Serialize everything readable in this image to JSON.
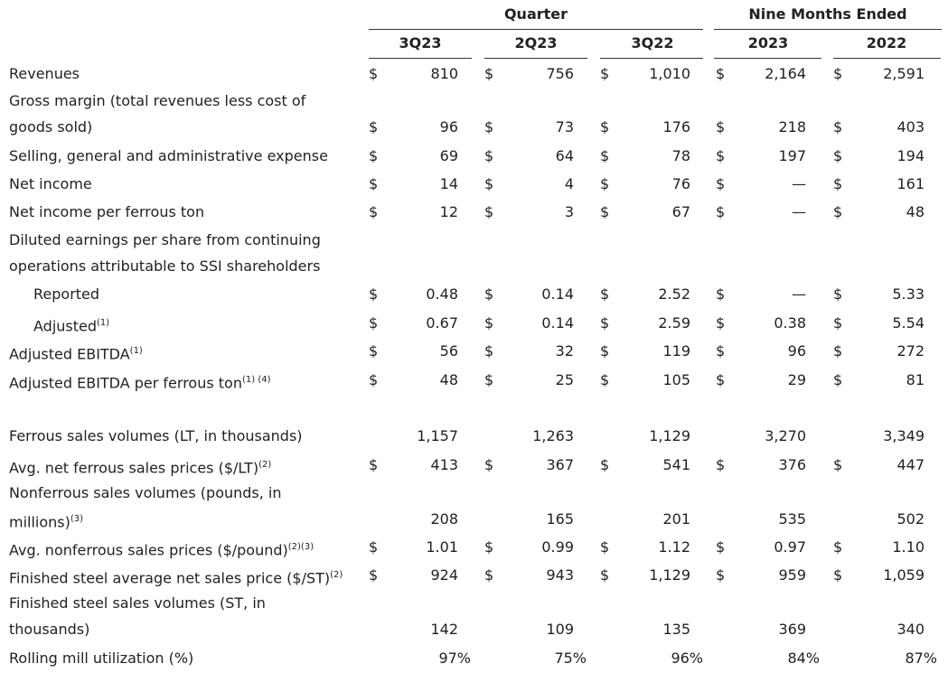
{
  "headers": {
    "quarter": "Quarter",
    "nine_months": "Nine Months Ended",
    "columns": [
      "3Q23",
      "2Q23",
      "3Q22",
      "2023",
      "2022"
    ]
  },
  "currency_symbol": "$",
  "rows": [
    {
      "lines": [
        "Revenues"
      ],
      "dollar": true,
      "values": [
        "810",
        "756",
        "1,010",
        "2,164",
        "2,591"
      ]
    },
    {
      "lines": [
        "Gross margin (total revenues less cost of",
        "goods sold)"
      ],
      "dollar": true,
      "values": [
        "96",
        "73",
        "176",
        "218",
        "403"
      ]
    },
    {
      "lines": [
        "Selling, general and administrative expense"
      ],
      "dollar": true,
      "values": [
        "69",
        "64",
        "78",
        "197",
        "194"
      ]
    },
    {
      "lines": [
        "Net income"
      ],
      "dollar": true,
      "values": [
        "14",
        "4",
        "76",
        "—",
        "161"
      ]
    },
    {
      "lines": [
        "Net income per ferrous ton"
      ],
      "dollar": true,
      "values": [
        "12",
        "3",
        "67",
        "—",
        "48"
      ]
    },
    {
      "lines": [
        "Diluted earnings per share from continuing",
        "operations attributable to SSI shareholders"
      ],
      "dollar": false,
      "values": []
    },
    {
      "lines": [
        "Reported"
      ],
      "indent": true,
      "dollar": true,
      "values": [
        "0.48",
        "0.14",
        "2.52",
        "—",
        "5.33"
      ]
    },
    {
      "lines": [
        "Adjusted"
      ],
      "sup": "(1)",
      "indent": true,
      "dollar": true,
      "values": [
        "0.67",
        "0.14",
        "2.59",
        "0.38",
        "5.54"
      ]
    },
    {
      "lines": [
        "Adjusted EBITDA"
      ],
      "sup": "(1)",
      "dollar": true,
      "values": [
        "56",
        "32",
        "119",
        "96",
        "272"
      ]
    },
    {
      "lines": [
        "Adjusted EBITDA per ferrous ton"
      ],
      "sup": "(1) (4)",
      "dollar": true,
      "values": [
        "48",
        "25",
        "105",
        "29",
        "81"
      ]
    },
    {
      "lines": [
        "Ferrous sales volumes (LT, in thousands)"
      ],
      "dollar": false,
      "values": [
        "1,157",
        "1,263",
        "1,129",
        "3,270",
        "3,349"
      ]
    },
    {
      "lines": [
        "Avg. net ferrous sales prices ($/LT)"
      ],
      "sup": "(2)",
      "dollar": true,
      "values": [
        "413",
        "367",
        "541",
        "376",
        "447"
      ]
    },
    {
      "lines": [
        "Nonferrous sales volumes (pounds, in",
        "millions)"
      ],
      "sup": "(3)",
      "dollar": false,
      "values": [
        "208",
        "165",
        "201",
        "535",
        "502"
      ]
    },
    {
      "lines": [
        "Avg. nonferrous sales prices ($/pound)"
      ],
      "sup": "(2)(3)",
      "dollar": true,
      "values": [
        "1.01",
        "0.99",
        "1.12",
        "0.97",
        "1.10"
      ]
    },
    {
      "lines": [
        "Finished steel average net sales price ($/ST)"
      ],
      "sup": "(2)",
      "dollar": true,
      "values": [
        "924",
        "943",
        "1,129",
        "959",
        "1,059"
      ]
    },
    {
      "lines": [
        "Finished steel sales volumes (ST, in",
        "thousands)"
      ],
      "dollar": false,
      "values": [
        "142",
        "109",
        "135",
        "369",
        "340"
      ]
    },
    {
      "lines": [
        "Rolling mill utilization (%)"
      ],
      "dollar": false,
      "pct": true,
      "values": [
        "97%",
        "75%",
        "96%",
        "84%",
        "87%"
      ]
    }
  ]
}
